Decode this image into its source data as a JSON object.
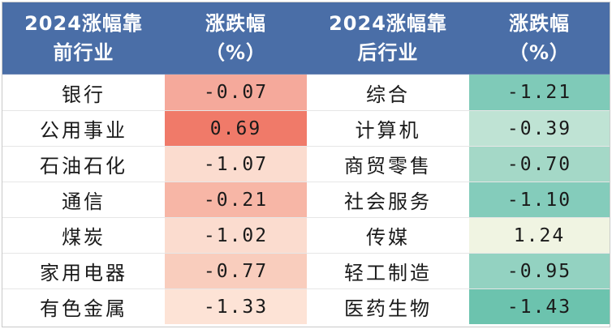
{
  "header": {
    "col1_line1": "2024涨幅靠",
    "col1_line2": "前行业",
    "col2_line1": "涨跌幅",
    "col2_line2": "（%）",
    "col3_line1": "2024涨幅靠",
    "col3_line2": "后行业",
    "col4_line1": "涨跌幅",
    "col4_line2": "（%）"
  },
  "rows": [
    {
      "top_industry": "银行",
      "top_change": "-0.07",
      "top_color": "#f5a99b",
      "bottom_industry": "综合",
      "bottom_change": "-1.21",
      "bottom_color": "#7fcab8"
    },
    {
      "top_industry": "公用事业",
      "top_change": "0.69",
      "top_color": "#f07a69",
      "bottom_industry": "计算机",
      "bottom_change": "-0.39",
      "bottom_color": "#bfe3d4"
    },
    {
      "top_industry": "石油石化",
      "top_change": "-1.07",
      "top_color": "#fbdccf",
      "bottom_industry": "商贸零售",
      "bottom_change": "-0.70",
      "bottom_color": "#a4d8c7"
    },
    {
      "top_industry": "通信",
      "top_change": "-0.21",
      "top_color": "#f7b6a6",
      "bottom_industry": "社会服务",
      "bottom_change": "-1.10",
      "bottom_color": "#84ccbb"
    },
    {
      "top_industry": "煤炭",
      "top_change": "-1.02",
      "top_color": "#fbdccf",
      "bottom_industry": "传媒",
      "bottom_change": "1.24",
      "bottom_color": "#f0f4e2"
    },
    {
      "top_industry": "家用电器",
      "top_change": "-0.77",
      "top_color": "#f9cdbd",
      "bottom_industry": "轻工制造",
      "bottom_change": "-0.95",
      "bottom_color": "#93d2c1"
    },
    {
      "top_industry": "有色金属",
      "top_change": "-1.33",
      "top_color": "#fde3d6",
      "bottom_industry": "医药生物",
      "bottom_change": "-1.43",
      "bottom_color": "#6cc3ae"
    }
  ]
}
